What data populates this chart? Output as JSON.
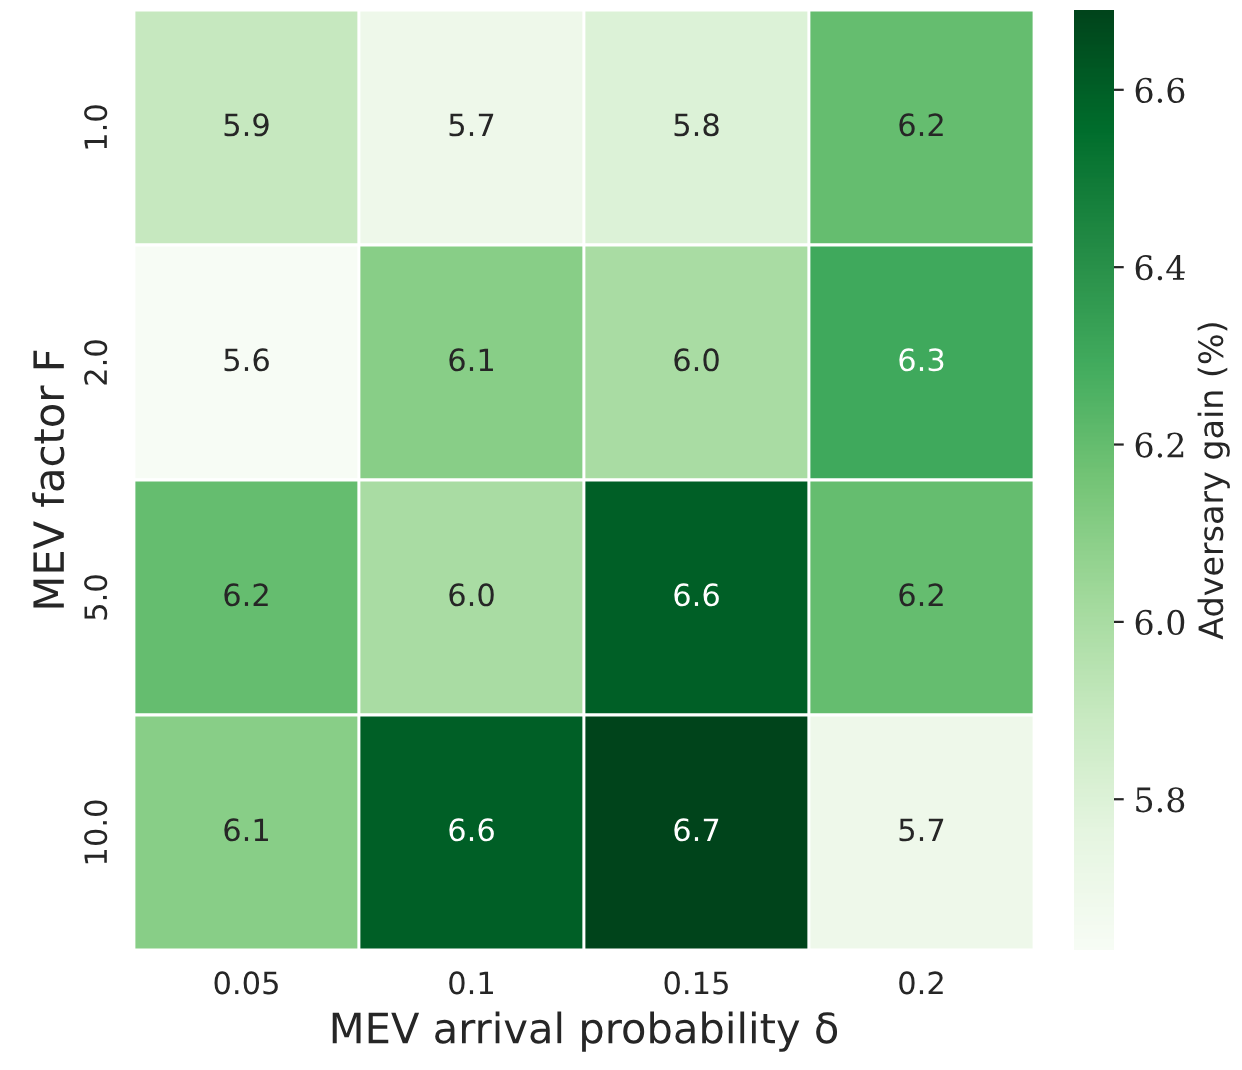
{
  "chart_data": {
    "type": "heatmap",
    "xlabel": "MEV arrival probability δ",
    "ylabel": "MEV factor F",
    "clabel": "Adversary gain (%)",
    "categories": [
      "0.05",
      "0.1",
      "0.15",
      "0.2"
    ],
    "y_categories": [
      "1.0",
      "2.0",
      "5.0",
      "10.0"
    ],
    "cells": [
      [
        5.9,
        5.7,
        5.8,
        6.2
      ],
      [
        5.63,
        6.1,
        6.0,
        6.3
      ],
      [
        6.2,
        6.0,
        6.6,
        6.2
      ],
      [
        6.1,
        6.6,
        6.69,
        5.7
      ]
    ],
    "cell_labels": [
      [
        "5.9",
        "5.7",
        "5.8",
        "6.2"
      ],
      [
        "5.6",
        "6.1",
        "6.0",
        "6.3"
      ],
      [
        "6.2",
        "6.0",
        "6.6",
        "6.2"
      ],
      [
        "6.1",
        "6.6",
        "6.7",
        "5.7"
      ]
    ],
    "clim": [
      5.63,
      6.69
    ],
    "cticks": [
      5.8,
      {
        "value": 6.0,
        "label": "6.0"
      },
      6.2,
      6.4,
      6.6
    ]
  }
}
